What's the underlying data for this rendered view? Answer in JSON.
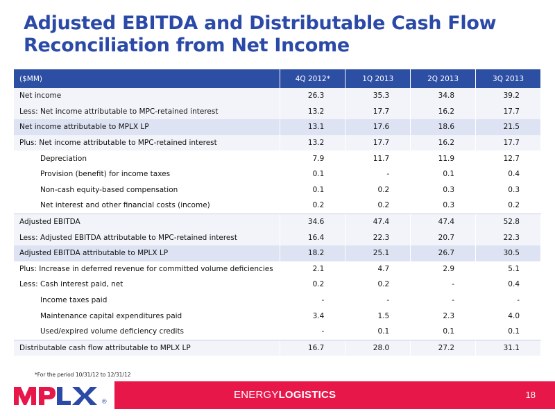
{
  "title": {
    "line1": "Adjusted EBITDA and Distributable Cash Flow",
    "line2": "Reconciliation from Net Income"
  },
  "table": {
    "headers": [
      "($MM)",
      "4Q 2012*",
      "1Q 2013",
      "2Q 2013",
      "3Q 2013"
    ],
    "rows": [
      {
        "label": "Net income",
        "values": [
          "26.3",
          "35.3",
          "34.8",
          "39.2"
        ]
      },
      {
        "label": "Less:  Net income attributable to MPC-retained interest",
        "values": [
          "13.2",
          "17.7",
          "16.2",
          "17.7"
        ]
      },
      {
        "label": "Net income attributable to MPLX LP",
        "values": [
          "13.1",
          "17.6",
          "18.6",
          "21.5"
        ]
      },
      {
        "label": "Plus:  Net income attributable to MPC-retained interest",
        "values": [
          "13.2",
          "17.7",
          "16.2",
          "17.7"
        ]
      },
      {
        "label": "Depreciation",
        "values": [
          "7.9",
          "11.7",
          "11.9",
          "12.7"
        ]
      },
      {
        "label": "Provision (benefit) for income taxes",
        "values": [
          "0.1",
          "-",
          "0.1",
          "0.4"
        ]
      },
      {
        "label": "Non-cash equity-based compensation",
        "values": [
          "0.1",
          "0.2",
          "0.3",
          "0.3"
        ]
      },
      {
        "label": "Net interest and other financial costs (income)",
        "values": [
          "0.2",
          "0.2",
          "0.3",
          "0.2"
        ]
      },
      {
        "label": "Adjusted EBITDA",
        "values": [
          "34.6",
          "47.4",
          "47.4",
          "52.8"
        ]
      },
      {
        "label": "Less:  Adjusted EBITDA attributable to MPC-retained interest",
        "values": [
          "16.4",
          "22.3",
          "20.7",
          "22.3"
        ]
      },
      {
        "label": "Adjusted EBITDA attributable to MPLX LP",
        "values": [
          "18.2",
          "25.1",
          "26.7",
          "30.5"
        ]
      },
      {
        "label": "Plus:  Increase in deferred revenue for committed volume deficiencies",
        "values": [
          "2.1",
          "4.7",
          "2.9",
          "5.1"
        ]
      },
      {
        "label": "Less:  Cash interest paid, net",
        "values": [
          "0.2",
          "0.2",
          "-",
          "0.4"
        ]
      },
      {
        "label": "Income taxes paid",
        "values": [
          "-",
          "-",
          "-",
          "-"
        ]
      },
      {
        "label": "Maintenance capital expenditures paid",
        "values": [
          "3.4",
          "1.5",
          "2.3",
          "4.0"
        ]
      },
      {
        "label": "Used/expired volume deficiency credits",
        "values": [
          "-",
          "0.1",
          "0.1",
          "0.1"
        ]
      },
      {
        "label": "Distributable cash flow attributable to MPLX LP",
        "values": [
          "16.7",
          "28.0",
          "27.2",
          "31.1"
        ]
      }
    ]
  },
  "footnote": "*For the period 10/31/12 to 12/31/12",
  "footer": {
    "logo_text": "MPLX",
    "registered": "®",
    "brand_light": "ENERGY",
    "brand_bold": "LOGISTICS",
    "page_number": "18"
  },
  "colors": {
    "title": "#2b4aa8",
    "header_bg": "#2c4ea3",
    "shade_row": "#dde3f2",
    "footer_bar": "#e8174a"
  }
}
